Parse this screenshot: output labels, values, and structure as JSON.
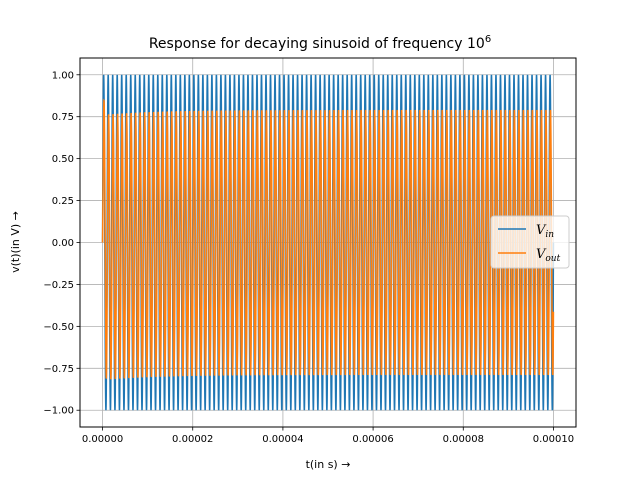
{
  "chart_data": {
    "type": "line",
    "title": "Response for decaying sinusoid of frequency 10",
    "title_superscript": "6",
    "xlabel": "t(in s) →",
    "ylabel": "v(t)(in V) →",
    "xlim": [
      -5e-06,
      0.000105
    ],
    "ylim": [
      -1.1,
      1.1
    ],
    "xticks": [
      0,
      2e-05,
      4e-05,
      6e-05,
      8e-05,
      0.0001
    ],
    "xtick_labels": [
      "0.00000",
      "0.00002",
      "0.00004",
      "0.00006",
      "0.00008",
      "0.00010"
    ],
    "yticks": [
      -1.0,
      -0.75,
      -0.5,
      -0.25,
      0.0,
      0.25,
      0.5,
      0.75,
      1.0
    ],
    "ytick_labels": [
      "−1.00",
      "−0.75",
      "−0.50",
      "−0.25",
      "0.00",
      "0.25",
      "0.50",
      "0.75",
      "1.00"
    ],
    "grid": true,
    "legend_position": "center-right",
    "frequency_hz": 1000000,
    "x_range": [
      0,
      0.0001
    ],
    "series": [
      {
        "name": "V",
        "name_sub": "in",
        "color": "#1f77b4",
        "amplitude": 1.0
      },
      {
        "name": "V",
        "name_sub": "out",
        "color": "#ff7f0e",
        "amplitude": 0.79,
        "initial_min": -0.82
      }
    ]
  }
}
